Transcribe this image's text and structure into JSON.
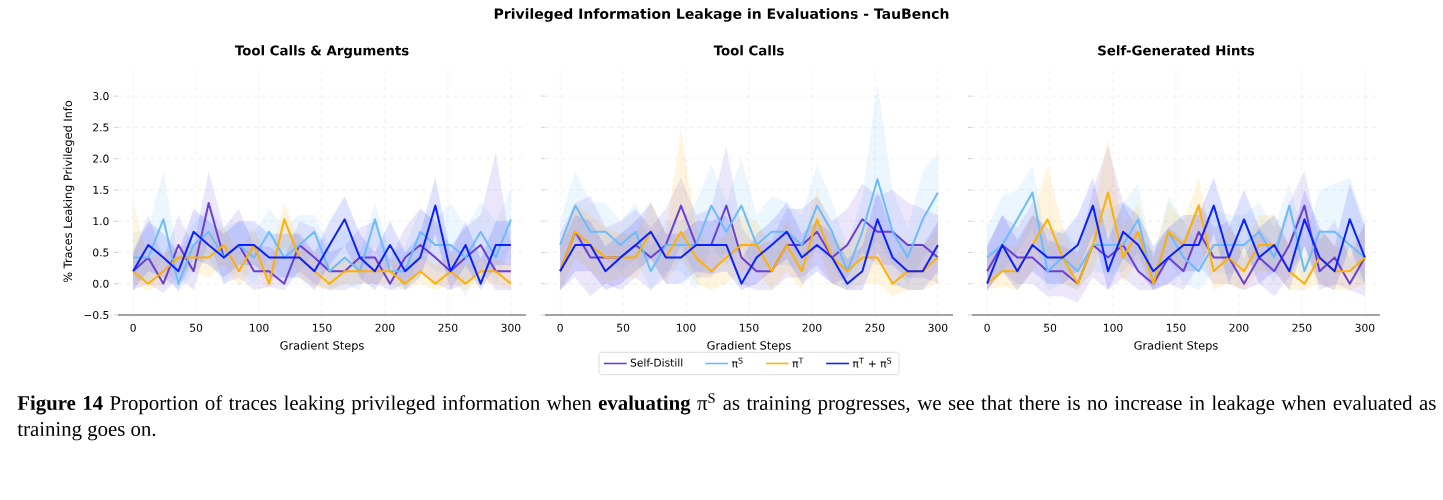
{
  "chart_data": [
    {
      "type": "line",
      "title": "Tool Calls & Arguments",
      "xlabel": "Gradient Steps",
      "ylabel": "% Traces Leaking Privileged Info",
      "annotations": [
        "Privileged Information Leakage in Evaluations - TauBench",
        "**Figure 14** Proportion of traces leaking privileged information when **evaluating** π$^{S}$ as training progresses, we see that there is no increase in leakage when evaluated as training goes on."
      ],
      "x": [
        0,
        12,
        24,
        36,
        48,
        60,
        72,
        84,
        96,
        108,
        120,
        132,
        144,
        156,
        168,
        180,
        192,
        204,
        216,
        228,
        240,
        252,
        264,
        276,
        288,
        300
      ],
      "xlim": [
        -12,
        312
      ],
      "ylim": [
        -0.5,
        3.45
      ],
      "xticks": [
        0,
        50,
        100,
        150,
        200,
        250,
        300
      ],
      "yticks": [
        {
          "value": -0.5,
          "label": "−0.5"
        },
        {
          "value": 0,
          "label": "0.0"
        },
        {
          "value": 0.5,
          "label": "0.5"
        },
        {
          "value": 1,
          "label": "1.0"
        },
        {
          "value": 1.5,
          "label": "1.5"
        },
        {
          "value": 2,
          "label": "2.0"
        },
        {
          "value": 2.5,
          "label": "2.5"
        },
        {
          "value": 3,
          "label": "3.0"
        }
      ],
      "grid": true,
      "series": [
        {
          "color": "#6a3fd8",
          "values": [
            0.2,
            0.42,
            0,
            0.62,
            0.2,
            1.29,
            0.42,
            0.62,
            0.2,
            0.2,
            0,
            0.62,
            0.42,
            0.2,
            0.2,
            0.42,
            0.42,
            0,
            0.42,
            0.62,
            0.42,
            0.2,
            0.42,
            0.62,
            0.2,
            0.2
          ],
          "lower": [
            -0.1,
            0,
            -0.15,
            0.1,
            -0.1,
            0.7,
            0,
            0.1,
            -0.1,
            -0.05,
            -0.1,
            0.2,
            0,
            -0.1,
            -0.1,
            0,
            0,
            -0.1,
            0,
            0.2,
            0,
            -0.1,
            0,
            0.2,
            -0.1,
            -0.1
          ],
          "upper": [
            0.5,
            1.1,
            0.4,
            1.1,
            0.6,
            1.8,
            0.9,
            1.2,
            0.6,
            0.6,
            0.4,
            1.0,
            0.9,
            0.5,
            0.6,
            0.9,
            1.0,
            0.4,
            0.9,
            1.2,
            1.0,
            0.6,
            0.9,
            1.1,
            2.1,
            0.6
          ]
        },
        {
          "color": "#6bbcff",
          "values": [
            0.42,
            0.42,
            1.03,
            0,
            0.62,
            0.83,
            0.42,
            0.62,
            0.42,
            0.83,
            0.42,
            0.62,
            0.83,
            0.2,
            0.42,
            0.2,
            1.03,
            0.2,
            0.2,
            0.83,
            0.62,
            0.62,
            0.42,
            0.83,
            0.42,
            1.03
          ],
          "lower": [
            0.1,
            0,
            0.4,
            -0.15,
            0.2,
            0.4,
            0,
            0.2,
            0,
            0.4,
            0,
            0.2,
            0.5,
            -0.1,
            0,
            -0.1,
            0.6,
            -0.1,
            -0.1,
            0.4,
            0.2,
            0.2,
            -0.2,
            0.4,
            0,
            0.6
          ],
          "upper": [
            0.8,
            0.9,
            1.8,
            0.4,
            1.0,
            1.2,
            0.9,
            1.0,
            0.8,
            1.2,
            0.9,
            1.1,
            1.1,
            0.6,
            0.9,
            0.5,
            1.3,
            0.5,
            0.6,
            1.2,
            1.0,
            1.3,
            0.9,
            1.3,
            1.0,
            1.5
          ]
        },
        {
          "color": "#ffb000",
          "values": [
            0.2,
            0,
            0.2,
            0.42,
            0.42,
            0.42,
            0.62,
            0.2,
            0.62,
            0,
            1.03,
            0.42,
            0.2,
            0,
            0.2,
            0.2,
            0.2,
            0.2,
            0,
            0.2,
            0,
            0.2,
            0,
            0.2,
            0.2,
            0
          ],
          "lower": [
            0,
            -0.1,
            0,
            0.2,
            0.2,
            0.1,
            0.3,
            -0.05,
            0.3,
            -0.1,
            0.6,
            0.1,
            -0.05,
            -0.1,
            0,
            0,
            0,
            0,
            -0.1,
            0,
            -0.1,
            0,
            -0.1,
            0,
            0,
            -0.1
          ],
          "upper": [
            1.3,
            0.4,
            0.5,
            0.6,
            0.6,
            0.8,
            0.9,
            0.5,
            0.9,
            0.3,
            1.3,
            0.7,
            0.5,
            0.3,
            0.4,
            0.4,
            0.4,
            0.4,
            0.3,
            0.5,
            0.3,
            0.5,
            0.3,
            0.4,
            0.4,
            0.3
          ]
        },
        {
          "color": "#0a22ff",
          "values": [
            0.2,
            0.62,
            0.42,
            0.2,
            0.83,
            0.62,
            0.42,
            0.62,
            0.62,
            0.42,
            0.42,
            0.42,
            0.2,
            0.62,
            1.03,
            0.42,
            0.2,
            0.62,
            0.2,
            0.42,
            1.25,
            0.2,
            0.62,
            0,
            0.62,
            0.62
          ],
          "lower": [
            -0.1,
            0.2,
            0.1,
            -0.1,
            0.4,
            0.3,
            0.1,
            0.3,
            0.3,
            0.1,
            0.1,
            0.1,
            -0.1,
            0.3,
            0.6,
            0.1,
            -0.1,
            0.3,
            -0.1,
            0.1,
            0.8,
            -0.1,
            0.3,
            -0.1,
            0.3,
            0.3
          ],
          "upper": [
            0.5,
            1.0,
            0.8,
            0.5,
            1.2,
            1.0,
            0.8,
            1.0,
            1.0,
            0.8,
            0.8,
            0.8,
            0.5,
            1.0,
            1.4,
            0.8,
            0.5,
            1.0,
            0.5,
            0.8,
            1.7,
            0.5,
            1.0,
            0.4,
            1.0,
            1.0
          ]
        }
      ]
    },
    {
      "type": "line",
      "title": "Tool Calls",
      "xlabel": "Gradient Steps",
      "x": [
        0,
        12,
        24,
        36,
        48,
        60,
        72,
        84,
        96,
        108,
        120,
        132,
        144,
        156,
        168,
        180,
        192,
        204,
        216,
        228,
        240,
        252,
        264,
        276,
        288,
        300
      ],
      "xlim": [
        -12,
        312
      ],
      "ylim": [
        -0.5,
        3.45
      ],
      "xticks": [
        0,
        50,
        100,
        150,
        200,
        250,
        300
      ],
      "yticks": [
        {
          "value": -0.5,
          "label": null
        },
        {
          "value": 0,
          "label": null
        },
        {
          "value": 0.5,
          "label": null
        },
        {
          "value": 1,
          "label": null
        },
        {
          "value": 1.5,
          "label": null
        },
        {
          "value": 2,
          "label": null
        },
        {
          "value": 2.5,
          "label": null
        },
        {
          "value": 3,
          "label": null
        }
      ],
      "tick_labels": "x",
      "grid": true,
      "legend": "bottom",
      "series": [
        {
          "name": "Self-Distill",
          "color": "#6a3fd8",
          "values": [
            0.2,
            0.83,
            0.42,
            0.42,
            0.42,
            0.62,
            0.42,
            0.62,
            1.25,
            0.62,
            0.62,
            1.25,
            0.42,
            0.2,
            0.2,
            0.62,
            0.62,
            0.83,
            0.42,
            0.62,
            1.03,
            0.83,
            0.83,
            0.62,
            0.62,
            0.42
          ],
          "lower": [
            -0.1,
            0.1,
            -0.2,
            0.0,
            -0.1,
            0.1,
            -0.1,
            0.1,
            0.6,
            0.1,
            0.1,
            0.5,
            0,
            -0.1,
            -0.1,
            0.1,
            0.1,
            0.3,
            0,
            0.1,
            0.5,
            0.3,
            0.3,
            0.1,
            0.1,
            0
          ],
          "upper": [
            0.8,
            1.3,
            1.4,
            0.9,
            1.0,
            1.2,
            0.9,
            1.2,
            1.7,
            1.1,
            1.2,
            2.2,
            0.9,
            0.6,
            0.7,
            1.2,
            1.2,
            1.4,
            1.0,
            1.2,
            1.6,
            1.4,
            1.5,
            1.3,
            1.2,
            1.1
          ]
        },
        {
          "name": "π$^{S}$",
          "color": "#6bbcff",
          "values": [
            0.62,
            1.25,
            0.83,
            0.83,
            0.62,
            0.83,
            0.2,
            0.62,
            0.62,
            0.62,
            1.25,
            0.83,
            1.25,
            0.62,
            0.83,
            0.83,
            0.62,
            1.25,
            0.83,
            0.2,
            0.83,
            1.67,
            0.83,
            0.42,
            1.03,
            1.46
          ],
          "lower": [
            0.3,
            0.7,
            0.4,
            0.4,
            0.2,
            0.4,
            -0.1,
            0.2,
            0.2,
            -0.1,
            0.6,
            0.3,
            0.6,
            0.2,
            0.3,
            0.3,
            0.2,
            0.6,
            0.3,
            -0.1,
            0.3,
            0.7,
            0.3,
            0,
            0.4,
            0.7
          ],
          "upper": [
            1.0,
            1.8,
            1.3,
            1.3,
            1.0,
            1.3,
            0.6,
            1.0,
            1.0,
            1.3,
            1.9,
            1.3,
            2.0,
            1.1,
            1.4,
            1.3,
            1.1,
            1.9,
            1.3,
            0.6,
            1.4,
            3.2,
            1.5,
            0.9,
            1.8,
            2.1
          ]
        },
        {
          "name": "π$^{T}$",
          "color": "#ffb000",
          "values": [
            0.2,
            0.83,
            0.62,
            0.42,
            0.42,
            0.42,
            0.83,
            0.42,
            0.83,
            0.42,
            0.2,
            0.42,
            0.62,
            0.62,
            0.2,
            0.62,
            0.2,
            1.03,
            0.42,
            0.2,
            0.42,
            0.42,
            0,
            0.2,
            0.2,
            0.42
          ],
          "lower": [
            -0.1,
            0.4,
            0.2,
            0,
            0.1,
            0.1,
            0.4,
            0,
            0.4,
            0,
            -0.1,
            0,
            0.2,
            0.2,
            -0.1,
            0.2,
            -0.1,
            0.6,
            0,
            -0.1,
            0,
            0,
            -0.2,
            -0.1,
            -0.1,
            0
          ],
          "upper": [
            0.6,
            1.3,
            1.1,
            0.9,
            0.8,
            0.8,
            1.3,
            0.8,
            2.5,
            0.9,
            0.6,
            0.8,
            1.1,
            1.0,
            0.6,
            1.0,
            0.6,
            1.5,
            0.8,
            0.6,
            0.9,
            0.9,
            0.4,
            0.6,
            0.6,
            0.9
          ]
        },
        {
          "name": "π$^{T}$ + π$^{S}$",
          "color": "#0a22ff",
          "values": [
            0.2,
            0.62,
            0.62,
            0.2,
            0.42,
            0.62,
            0.83,
            0.42,
            0.42,
            0.62,
            0.62,
            0.62,
            0,
            0.42,
            0.62,
            0.83,
            0.42,
            0.62,
            0.42,
            0,
            0.2,
            1.03,
            0.42,
            0.2,
            0.2,
            0.62
          ],
          "lower": [
            -0.1,
            0.2,
            0.2,
            -0.1,
            0,
            0.2,
            0.4,
            0,
            0,
            0.2,
            0.15,
            0.2,
            -0.1,
            0,
            0.2,
            0.4,
            0,
            0.2,
            0,
            -0.1,
            -0.1,
            0.5,
            0,
            -0.1,
            -0.1,
            0.2
          ],
          "upper": [
            0.6,
            1.1,
            1.0,
            0.6,
            0.8,
            1.0,
            1.3,
            0.8,
            0.8,
            1.0,
            1.0,
            1.1,
            0.4,
            0.8,
            1.0,
            1.3,
            0.8,
            1.0,
            0.8,
            0.4,
            0.6,
            1.5,
            0.8,
            0.6,
            0.6,
            1.0
          ]
        }
      ]
    },
    {
      "type": "line",
      "title": "Self-Generated Hints",
      "xlabel": "Gradient Steps",
      "x": [
        0,
        12,
        24,
        36,
        48,
        60,
        72,
        84,
        96,
        108,
        120,
        132,
        144,
        156,
        168,
        180,
        192,
        204,
        216,
        228,
        240,
        252,
        264,
        276,
        288,
        300
      ],
      "xlim": [
        -12,
        312
      ],
      "ylim": [
        -0.5,
        3.45
      ],
      "xticks": [
        0,
        50,
        100,
        150,
        200,
        250,
        300
      ],
      "yticks": [
        {
          "value": -0.5,
          "label": null
        },
        {
          "value": 0,
          "label": null
        },
        {
          "value": 0.5,
          "label": null
        },
        {
          "value": 1,
          "label": null
        },
        {
          "value": 1.5,
          "label": null
        },
        {
          "value": 2,
          "label": null
        },
        {
          "value": 2.5,
          "label": null
        },
        {
          "value": 3,
          "label": null
        }
      ],
      "tick_labels": "x",
      "grid": true,
      "series": [
        {
          "color": "#6a3fd8",
          "values": [
            0.2,
            0.62,
            0.42,
            0.42,
            0.2,
            0.2,
            0,
            0.62,
            0.42,
            0.62,
            0.2,
            0,
            0.42,
            0.2,
            0.83,
            0.42,
            0.42,
            0,
            0.42,
            0.2,
            0.62,
            1.25,
            0.2,
            0.42,
            0,
            0.42
          ],
          "lower": [
            -0.1,
            0.2,
            0,
            0,
            -0.2,
            -0.2,
            -0.3,
            0.1,
            -0.1,
            0.1,
            -0.1,
            -0.1,
            0,
            -0.1,
            0.3,
            0,
            0,
            -0.1,
            0,
            -0.2,
            0.1,
            0.6,
            -0.1,
            0,
            -0.1,
            -0.2
          ],
          "upper": [
            0.6,
            1.1,
            0.9,
            1.3,
            0.7,
            0.6,
            0.5,
            1.5,
            2.2,
            1.3,
            0.8,
            0.5,
            0.9,
            0.7,
            1.3,
            0.9,
            1.0,
            0.4,
            0.9,
            0.6,
            1.3,
            1.8,
            0.7,
            1.0,
            0.4,
            1.0
          ]
        },
        {
          "color": "#6bbcff",
          "values": [
            0.42,
            0.62,
            1.03,
            1.46,
            0.2,
            0.42,
            0.2,
            0.62,
            0.62,
            0.62,
            1.03,
            0,
            0.83,
            0.42,
            0.2,
            0.62,
            0.62,
            0.62,
            0.83,
            0.42,
            1.25,
            0.2,
            0.83,
            0.83,
            0.62,
            0.42
          ],
          "lower": [
            0.1,
            0.2,
            0.5,
            0.9,
            -0.1,
            0,
            -0.1,
            0.2,
            0.15,
            0.2,
            0.5,
            -0.1,
            0.4,
            0,
            -0.1,
            0.2,
            0.15,
            0.2,
            0.4,
            0,
            0.7,
            -0.1,
            0.4,
            0.3,
            0.2,
            0
          ],
          "upper": [
            0.9,
            1.4,
            1.5,
            1.9,
            0.6,
            0.9,
            0.6,
            1.2,
            1.2,
            1.3,
            1.6,
            0.4,
            1.4,
            1.0,
            0.6,
            1.2,
            1.1,
            1.1,
            1.3,
            0.9,
            1.6,
            0.7,
            1.5,
            1.6,
            1.7,
            1.0
          ]
        },
        {
          "color": "#ffb000",
          "values": [
            0,
            0.2,
            0.2,
            0.62,
            1.03,
            0.42,
            0,
            0.62,
            1.46,
            0.42,
            0.83,
            0,
            0.83,
            0.62,
            1.25,
            0.2,
            0.42,
            0.2,
            0.62,
            0.62,
            0.2,
            0,
            0.42,
            0.2,
            0.2,
            0.42
          ],
          "lower": [
            -0.1,
            -0.05,
            -0.1,
            0.2,
            0.5,
            0,
            -0.1,
            0.2,
            0.9,
            0,
            0.4,
            -0.1,
            0.4,
            0.2,
            0.7,
            -0.1,
            0,
            -0.1,
            0.2,
            0.2,
            -0.1,
            -0.1,
            0,
            -0.1,
            -0.1,
            0
          ],
          "upper": [
            0.4,
            0.6,
            0.6,
            1.1,
            1.9,
            0.9,
            0.4,
            1.1,
            2.3,
            0.9,
            1.3,
            0.4,
            1.3,
            1.0,
            1.7,
            0.6,
            0.9,
            0.6,
            1.1,
            1.1,
            0.6,
            0.4,
            0.9,
            0.6,
            0.6,
            0.9
          ]
        },
        {
          "color": "#0a22ff",
          "values": [
            0,
            0.62,
            0.2,
            0.62,
            0.42,
            0.42,
            0.62,
            1.25,
            0.2,
            0.83,
            0.62,
            0.2,
            0.42,
            0.62,
            0.62,
            1.25,
            0.42,
            1.03,
            0.42,
            0.62,
            0.2,
            1.03,
            0.42,
            0.2,
            1.03,
            0.42
          ],
          "lower": [
            -0.1,
            0.2,
            -0.1,
            0.2,
            0,
            0,
            0.2,
            0.8,
            -0.1,
            0.4,
            0.2,
            -0.1,
            0,
            0.2,
            0.2,
            0.8,
            0,
            0.6,
            0,
            0.2,
            -0.1,
            0.6,
            0,
            -0.1,
            0.6,
            0
          ],
          "upper": [
            0.6,
            1.1,
            0.7,
            1.1,
            0.9,
            0.8,
            1.1,
            1.7,
            0.7,
            1.3,
            1.1,
            0.6,
            0.9,
            1.1,
            1.1,
            1.7,
            0.9,
            1.5,
            0.9,
            1.1,
            0.6,
            1.5,
            0.9,
            0.6,
            1.6,
            0.9
          ]
        }
      ]
    }
  ]
}
